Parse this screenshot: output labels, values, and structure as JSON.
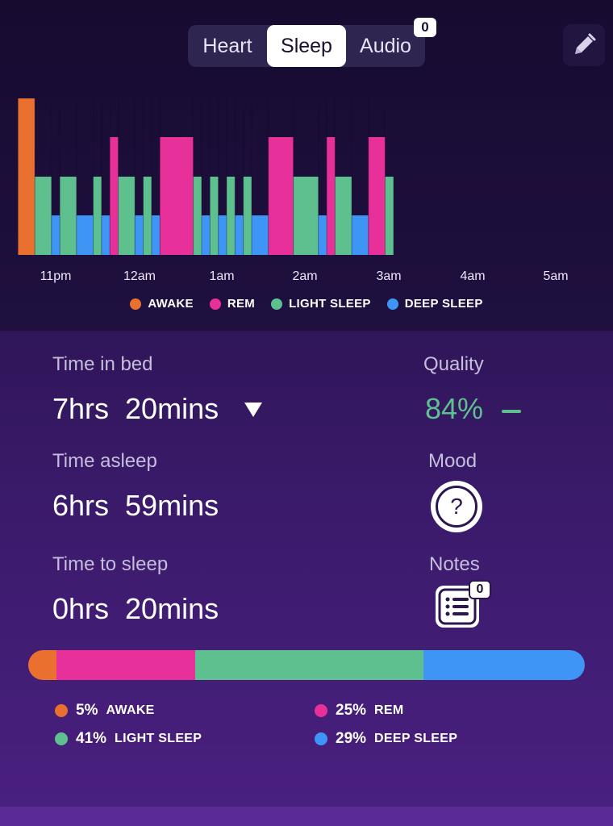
{
  "tabs": [
    {
      "label": "Heart",
      "selected": false
    },
    {
      "label": "Sleep",
      "selected": true
    },
    {
      "label": "Audio",
      "selected": false,
      "badge": "0"
    }
  ],
  "colors": {
    "awake": "#ea7030",
    "rem": "#e8309a",
    "light": "#5ec08e",
    "deep": "#3f95f5"
  },
  "chart_data": {
    "type": "bar",
    "description_levels": [
      "awake",
      "rem",
      "light",
      "deep"
    ],
    "x_labels": [
      "11pm",
      "12am",
      "1am",
      "2am",
      "3am",
      "4am",
      "5am"
    ],
    "segments": [
      {
        "stage": "awake",
        "start": "22:33",
        "end": "22:45"
      },
      {
        "stage": "light",
        "start": "22:45",
        "end": "22:57"
      },
      {
        "stage": "deep",
        "start": "22:57",
        "end": "23:03"
      },
      {
        "stage": "light",
        "start": "23:03",
        "end": "23:15"
      },
      {
        "stage": "deep",
        "start": "23:15",
        "end": "23:27"
      },
      {
        "stage": "light",
        "start": "23:27",
        "end": "23:33"
      },
      {
        "stage": "deep",
        "start": "23:33",
        "end": "23:39"
      },
      {
        "stage": "rem",
        "start": "23:39",
        "end": "23:45"
      },
      {
        "stage": "light",
        "start": "23:45",
        "end": "23:57"
      },
      {
        "stage": "deep",
        "start": "23:57",
        "end": "00:03"
      },
      {
        "stage": "light",
        "start": "00:03",
        "end": "00:09"
      },
      {
        "stage": "deep",
        "start": "00:09",
        "end": "00:15"
      },
      {
        "stage": "rem",
        "start": "00:15",
        "end": "00:39"
      },
      {
        "stage": "light",
        "start": "00:39",
        "end": "00:45"
      },
      {
        "stage": "deep",
        "start": "00:45",
        "end": "00:51"
      },
      {
        "stage": "light",
        "start": "00:51",
        "end": "00:57"
      },
      {
        "stage": "deep",
        "start": "00:57",
        "end": "01:03"
      },
      {
        "stage": "light",
        "start": "01:03",
        "end": "01:09"
      },
      {
        "stage": "deep",
        "start": "01:09",
        "end": "01:15"
      },
      {
        "stage": "light",
        "start": "01:15",
        "end": "01:21"
      },
      {
        "stage": "deep",
        "start": "01:21",
        "end": "01:33"
      },
      {
        "stage": "rem",
        "start": "01:33",
        "end": "01:51"
      },
      {
        "stage": "light",
        "start": "01:51",
        "end": "02:09"
      },
      {
        "stage": "deep",
        "start": "02:09",
        "end": "02:15"
      },
      {
        "stage": "rem",
        "start": "02:15",
        "end": "02:21"
      },
      {
        "stage": "light",
        "start": "02:21",
        "end": "02:33"
      },
      {
        "stage": "deep",
        "start": "02:33",
        "end": "02:45"
      },
      {
        "stage": "rem",
        "start": "02:45",
        "end": "02:57"
      },
      {
        "stage": "light",
        "start": "02:57",
        "end": "03:03"
      }
    ],
    "legend": [
      {
        "stage": "awake",
        "label": "AWAKE"
      },
      {
        "stage": "rem",
        "label": "REM"
      },
      {
        "stage": "light",
        "label": "LIGHT SLEEP"
      },
      {
        "stage": "deep",
        "label": "DEEP SLEEP"
      }
    ]
  },
  "stats": {
    "time_in_bed_label": "Time in bed",
    "time_in_bed_value": "7hrs  20mins",
    "time_asleep_label": "Time asleep",
    "time_asleep_value": "6hrs  59mins",
    "time_to_sleep_label": "Time to sleep",
    "time_to_sleep_value": "0hrs  20mins",
    "quality_label": "Quality",
    "quality_value": "84%",
    "mood_label": "Mood",
    "mood_symbol": "?",
    "notes_label": "Notes",
    "notes_badge": "0"
  },
  "breakdown": [
    {
      "stage": "awake",
      "percent": 5,
      "pct_label": "5%",
      "label": "AWAKE"
    },
    {
      "stage": "rem",
      "percent": 25,
      "pct_label": "25%",
      "label": "REM"
    },
    {
      "stage": "light",
      "percent": 41,
      "pct_label": "41%",
      "label": "LIGHT SLEEP"
    },
    {
      "stage": "deep",
      "percent": 29,
      "pct_label": "29%",
      "label": "DEEP SLEEP"
    }
  ]
}
